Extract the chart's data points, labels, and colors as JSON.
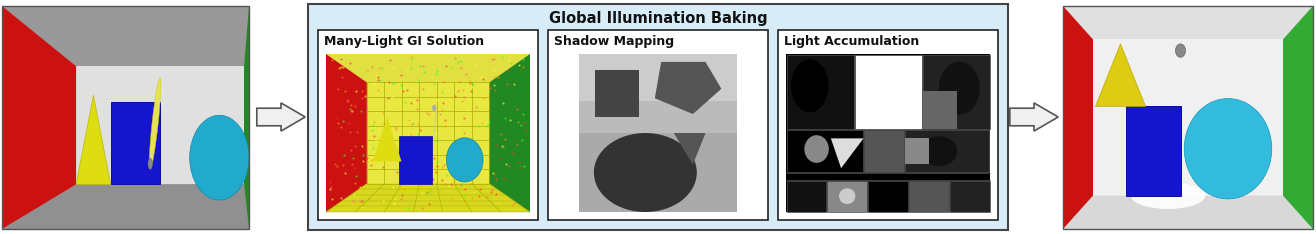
{
  "title": "Global Illumination Baking",
  "title_fontsize": 10.5,
  "title_fontweight": "bold",
  "sub_labels": [
    "Many-Light GI Solution",
    "Shadow Mapping",
    "Light Accumulation"
  ],
  "sub_label_fontsize": 9,
  "sub_label_fontweight": "bold",
  "outer_box_color": "#d8ecf8",
  "outer_box_edgecolor": "#444444",
  "inner_box_edgecolor": "#222222",
  "inner_box_facecolor": "#ffffff",
  "bg_color": "#ffffff",
  "left_scene_bg": "#b8b8b8",
  "right_scene_bg": "#c8c8c8"
}
